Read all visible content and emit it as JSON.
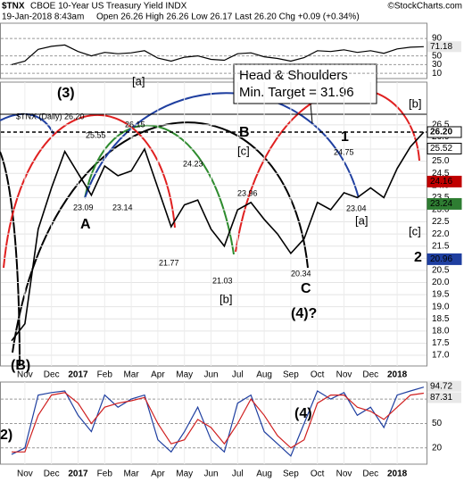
{
  "header": {
    "symbol": "$TNX",
    "name": "CBOE 10-Year US Treasury Yield INDX",
    "credit": "©StockCharts.com",
    "date": "19-Jan-2018 8:43am",
    "quote": "Open 26.26  High 26.26  Low 26.17  Last 26.20  Chg +0.09 (+0.34%)"
  },
  "callout": {
    "line1": "Head & Shoulders",
    "line2": "Min. Target = 31.96"
  },
  "chart_data": [
    {
      "type": "line",
      "ylim": [
        -2,
        125
      ],
      "yticks": [
        10,
        30,
        50,
        90
      ],
      "grid": true,
      "series": [
        {
          "color": "#000000",
          "values": [
            30,
            38,
            65,
            72,
            75,
            60,
            50,
            58,
            55,
            57,
            62,
            45,
            38,
            47,
            50,
            42,
            40,
            55,
            57,
            48,
            44,
            38,
            46,
            62,
            60,
            64,
            58,
            62,
            56,
            66,
            70,
            71.18
          ]
        }
      ]
    },
    {
      "type": "line",
      "categories": [
        null,
        "Nov",
        null,
        "Dec",
        null,
        "2017",
        null,
        "Feb",
        null,
        "Mar",
        null,
        "Apr",
        null,
        "May",
        null,
        "Jun",
        null,
        "Jul",
        null,
        "Aug",
        null,
        "Sep",
        null,
        "Oct",
        null,
        "Nov",
        null,
        "Dec",
        null,
        "2018",
        null,
        null
      ],
      "ylim": [
        16.56,
        28.26
      ],
      "yticks": [
        {
          "value": 17,
          "label": "17.0"
        },
        17.5,
        {
          "value": 18,
          "label": "18.0"
        },
        18.5,
        {
          "value": 19,
          "label": "19.0"
        },
        19.5,
        {
          "value": 20,
          "label": "20.0"
        },
        20.5,
        {
          "value": 21,
          "label": "21.0"
        },
        21.5,
        {
          "value": 22,
          "label": "22.0"
        },
        22.5,
        {
          "value": 23,
          "label": "23.0"
        },
        23.5,
        {
          "value": 24,
          "label": "24.0"
        },
        24.5,
        {
          "value": 25,
          "label": "25.0"
        },
        25.5,
        {
          "value": 26,
          "label": "26.0"
        },
        26.5
      ],
      "grid": true,
      "series": [
        {
          "color": "#000000",
          "values": [
            17.6,
            18.3,
            22.2,
            23.9,
            25.4,
            24.5,
            23.6,
            24.8,
            24.4,
            24.6,
            25.5,
            23.9,
            22.3,
            23.2,
            23.4,
            22.2,
            21.5,
            23.0,
            23.3,
            22.6,
            22.0,
            21.2,
            21.8,
            23.3,
            23.0,
            23.7,
            23.5,
            23.9,
            23.5,
            24.7,
            25.6,
            26.2
          ]
        }
      ],
      "price_labels": [
        {
          "value": 26.2,
          "label": "26.20",
          "color": "#ffffff"
        },
        {
          "value": 25.52,
          "color": "#ffffff"
        },
        {
          "value": 24.16,
          "color": "#c00000"
        },
        {
          "value": 23.24,
          "color": "#2e7d32"
        },
        {
          "value": 20.96,
          "color": "#1f3fa0"
        }
      ],
      "annotations": [
        "(3)",
        "[a]",
        "26.15",
        "25.55",
        "24.23",
        "23.09",
        "23.14",
        "21.77",
        "21.03",
        "[b]",
        "23.96",
        "[c]",
        "B",
        "A",
        "C",
        "20.34",
        "(4)?",
        "24.75",
        "1",
        "23.04",
        "[a]",
        "[b]",
        "[c]",
        "2",
        "(B)",
        "$TNX (Daily) 26.20"
      ]
    },
    {
      "type": "line",
      "categories": [
        null,
        "Nov",
        null,
        "Dec",
        null,
        "2017",
        null,
        "Feb",
        null,
        "Mar",
        null,
        "Apr",
        null,
        "May",
        null,
        "Jun",
        null,
        "Jul",
        null,
        "Aug",
        null,
        "Sep",
        null,
        "Oct",
        null,
        "Nov",
        null,
        "Dec",
        null,
        "2018",
        null,
        null
      ],
      "ylim": [
        0,
        101
      ],
      "yticks": [
        20,
        50,
        80
      ],
      "grid": true,
      "series": [
        {
          "color": "#1f3fa0",
          "values": [
            12,
            20,
            85,
            88,
            90,
            60,
            40,
            85,
            70,
            80,
            85,
            30,
            15,
            40,
            70,
            30,
            15,
            75,
            85,
            40,
            25,
            10,
            50,
            90,
            80,
            88,
            60,
            70,
            45,
            85,
            90,
            94.72
          ]
        },
        {
          "color": "#d02020",
          "values": [
            15,
            15,
            60,
            85,
            88,
            75,
            50,
            70,
            75,
            78,
            82,
            50,
            25,
            30,
            55,
            45,
            25,
            50,
            80,
            60,
            35,
            20,
            30,
            75,
            85,
            85,
            70,
            65,
            55,
            70,
            85,
            87.31
          ]
        }
      ],
      "annotations": [
        "(4)",
        "2)"
      ]
    }
  ]
}
